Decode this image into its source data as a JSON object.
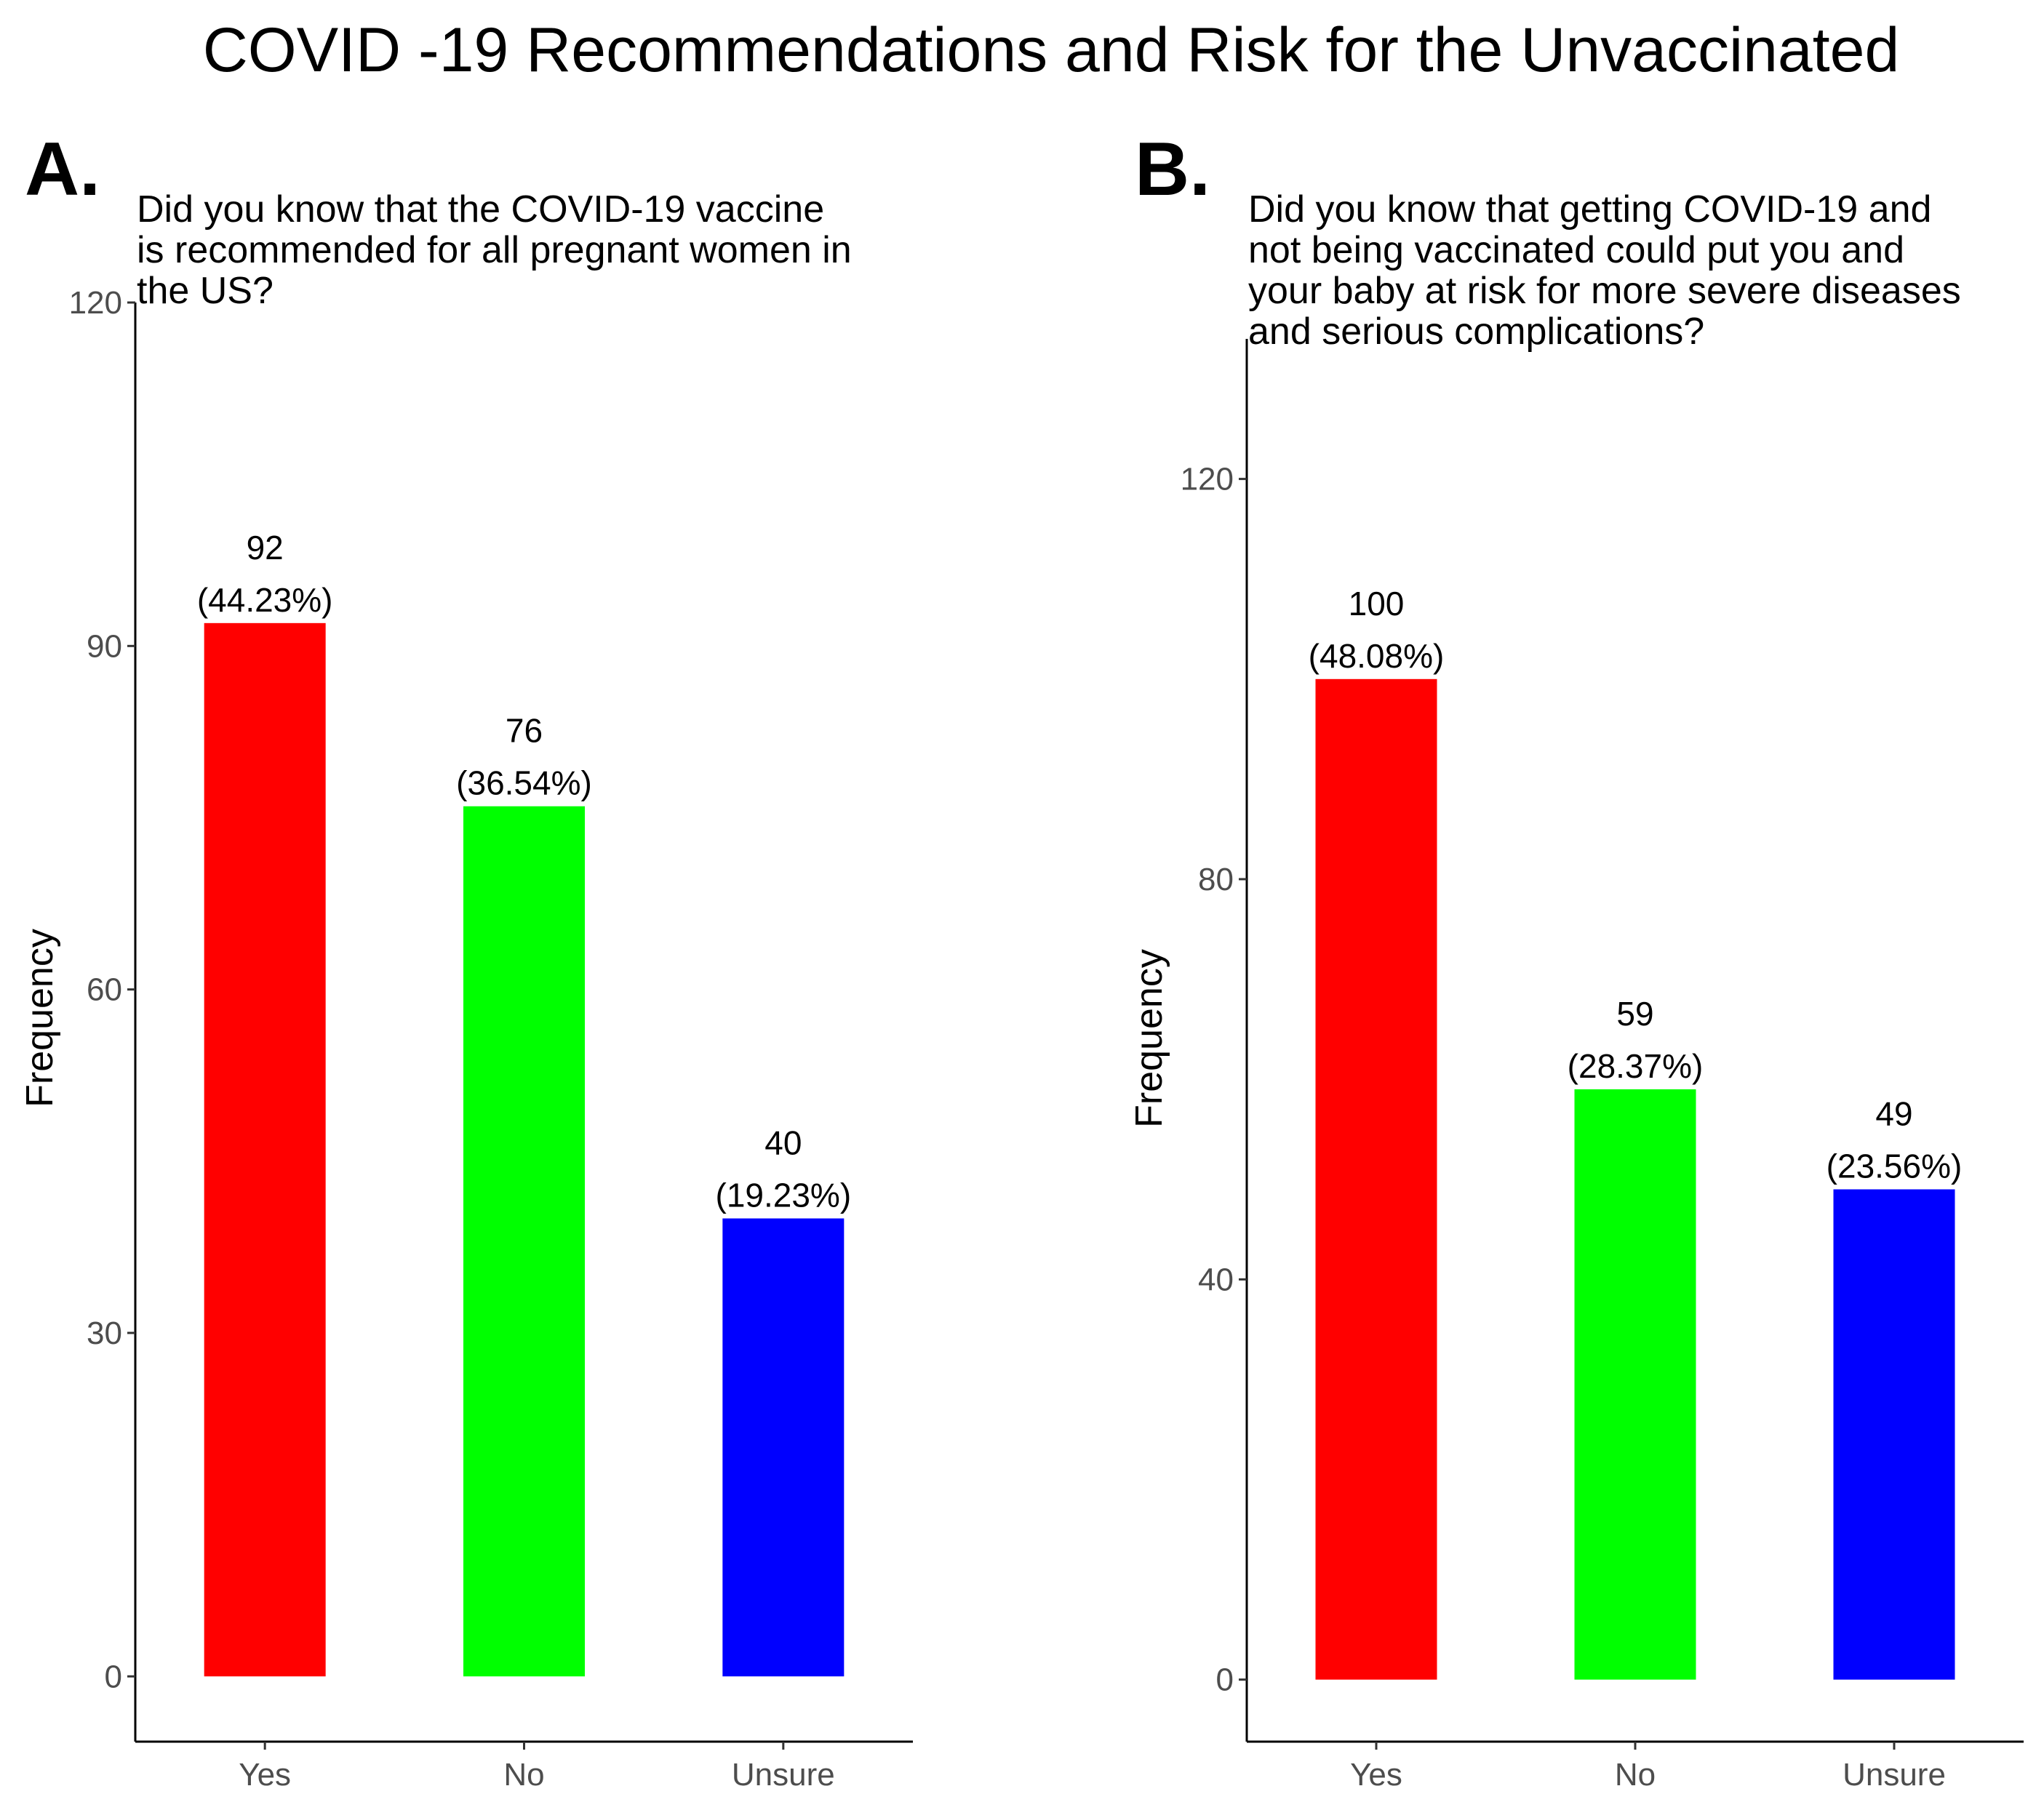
{
  "figure_title": "COVID -19 Recommendations and Risk for the Unvaccinated",
  "colors": {
    "yes": "#ff0000",
    "no": "#00ff00",
    "unsure": "#0000ff",
    "axis": "#000000",
    "tick_text": "#4d4d4d"
  },
  "chart_data": [
    {
      "type": "bar",
      "panel_label": "A.",
      "title": "Did you know that the COVID-19 vaccine is recommended for all pregnant women in the US?",
      "title_lines": [
        "Did you know that the COVID-19 vaccine",
        "is recommended for all pregnant women in",
        "the US?"
      ],
      "categories": [
        "Yes",
        "No",
        "Unsure"
      ],
      "values": [
        92,
        76,
        40
      ],
      "percent_labels": [
        "(44.23%)",
        "(36.54%)",
        "(19.23%)"
      ],
      "bar_colors": [
        "#ff0000",
        "#00ff00",
        "#0000ff"
      ],
      "xlabel": "",
      "ylabel": "Frequency",
      "yticks": [
        0,
        30,
        60,
        90,
        120
      ],
      "ylim": [
        -5.7,
        120
      ],
      "grid": false
    },
    {
      "type": "bar",
      "panel_label": "B.",
      "title": "Did you know that getting COVID-19 and not being vaccinated could put you and your baby at risk for more severe diseases and serious complications?",
      "title_lines": [
        "Did you know that getting COVID-19 and",
        "not being vaccinated could put you and",
        "your baby at risk for more severe diseases",
        "and serious complications?"
      ],
      "categories": [
        "Yes",
        "No",
        "Unsure"
      ],
      "values": [
        100,
        59,
        49
      ],
      "percent_labels": [
        "(48.08%)",
        "(28.37%)",
        "(23.56%)"
      ],
      "bar_colors": [
        "#ff0000",
        "#00ff00",
        "#0000ff"
      ],
      "xlabel": "",
      "ylabel": "Frequency",
      "yticks": [
        0,
        40,
        80,
        120
      ],
      "ylim": [
        -6.2,
        134
      ],
      "grid": false
    }
  ]
}
